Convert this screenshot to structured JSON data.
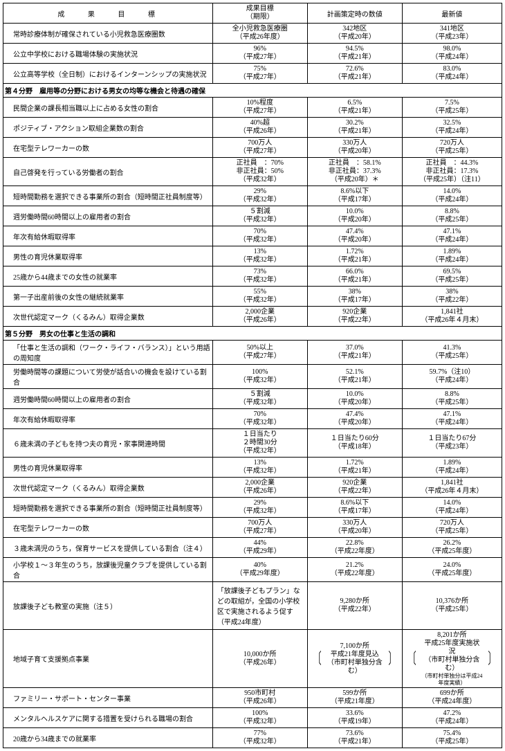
{
  "header": {
    "col1": "成　　果　　目　　標",
    "col2a": "成果目標",
    "col2b": "（期限）",
    "col3": "計画策定時の数値",
    "col4": "最新値"
  },
  "rows": [
    {
      "type": "row",
      "label": "常時診療体制が確保されている小児救急医療圏数",
      "targetA": "全小児救急医療圏",
      "targetB": "（平成26年度）",
      "planA": "342地区",
      "planB": "（平成20年）",
      "latestA": "341地区",
      "latestB": "（平成23年）"
    },
    {
      "type": "row",
      "label": "公立中学校における職場体験の実施状況",
      "targetA": "96%",
      "targetB": "（平成27年）",
      "planA": "94.5%",
      "planB": "（平成21年）",
      "latestA": "98.0%",
      "latestB": "（平成24年）"
    },
    {
      "type": "row",
      "label": "公立高等学校（全日制）におけるインターンシップの実施状況",
      "targetA": "75%",
      "targetB": "（平成27年）",
      "planA": "72.6%",
      "planB": "（平成21年）",
      "latestA": "83.0%",
      "latestB": "（平成24年）"
    },
    {
      "type": "section",
      "label": "第４分野　雇用等の分野における男女の均等な機会と待遇の確保"
    },
    {
      "type": "row",
      "label": "民間企業の課長相当職以上に占める女性の割合",
      "targetA": "10%程度",
      "targetB": "（平成27年）",
      "planA": "6.5%",
      "planB": "（平成21年）",
      "latestA": "7.5%",
      "latestB": "（平成25年）"
    },
    {
      "type": "row",
      "label": "ポジティブ・アクション取組企業数の割合",
      "targetA": "40%超",
      "targetB": "（平成26年）",
      "planA": "30.2%",
      "planB": "（平成21年）",
      "latestA": "32.5%",
      "latestB": "（平成24年）"
    },
    {
      "type": "row",
      "label": "在宅型テレワーカーの数",
      "targetA": "700万人",
      "targetB": "（平成27年）",
      "planA": "330万人",
      "planB": "（平成20年）",
      "latestA": "720万人",
      "latestB": "（平成25年）"
    },
    {
      "type": "row3",
      "label": "自己啓発を行っている労働者の割合",
      "targetA": "正社員　：70%",
      "targetB": "非正社員：50%",
      "targetC": "（平成32年）",
      "planA": "正社員　：58.1%",
      "planB": "非正社員：37.3%",
      "planC": "（平成20年）＊",
      "latestA": "正社員　：44.3%",
      "latestB": "非正社員：17.3%",
      "latestC": "（平成25年）（注11）"
    },
    {
      "type": "row",
      "label": "短時間勤務を選択できる事業所の割合（短時間正社員制度等）",
      "targetA": "29%",
      "targetB": "（平成32年）",
      "planA": "8.6%以下",
      "planB": "（平成17年）",
      "latestA": "14.0%",
      "latestB": "（平成24年）"
    },
    {
      "type": "row",
      "label": "週労働時間60時間以上の雇用者の割合",
      "targetA": "５割減",
      "targetB": "（平成32年）",
      "planA": "10.0%",
      "planB": "（平成20年）",
      "latestA": "8.8%",
      "latestB": "（平成25年）"
    },
    {
      "type": "row",
      "label": "年次有給休暇取得率",
      "targetA": "70%",
      "targetB": "（平成32年）",
      "planA": "47.4%",
      "planB": "（平成20年）",
      "latestA": "47.1%",
      "latestB": "（平成24年）"
    },
    {
      "type": "row",
      "label": "男性の育児休業取得率",
      "targetA": "13%",
      "targetB": "（平成32年）",
      "planA": "1.72%",
      "planB": "（平成21年）",
      "latestA": "1.89%",
      "latestB": "（平成24年）"
    },
    {
      "type": "row",
      "label": "25歳から44歳までの女性の就業率",
      "targetA": "73%",
      "targetB": "（平成32年）",
      "planA": "66.0%",
      "planB": "（平成21年）",
      "latestA": "69.5%",
      "latestB": "（平成25年）"
    },
    {
      "type": "row",
      "label": "第一子出産前後の女性の継続就業率",
      "targetA": "55%",
      "targetB": "（平成32年）",
      "planA": "38%",
      "planB": "（平成17年）",
      "latestA": "38%",
      "latestB": "（平成22年）"
    },
    {
      "type": "row",
      "label": "次世代認定マーク（くるみん）取得企業数",
      "targetA": "2,000企業",
      "targetB": "（平成26年）",
      "planA": "920企業",
      "planB": "（平成22年）",
      "latestA": "1,841社",
      "latestB": "（平成26年４月末）"
    },
    {
      "type": "section",
      "label": "第５分野　男女の仕事と生活の調和"
    },
    {
      "type": "row",
      "label": "「仕事と生活の調和（ワーク・ライフ・バランス）」という用語の周知度",
      "targetA": "50%以上",
      "targetB": "（平成27年）",
      "planA": "37.0%",
      "planB": "（平成21年）",
      "latestA": "41.3%",
      "latestB": "（平成25年）"
    },
    {
      "type": "row",
      "label": "労働時間等の課題について労使が話合いの機会を設けている割合",
      "targetA": "100%",
      "targetB": "（平成32年）",
      "planA": "52.1%",
      "planB": "（平成21年）",
      "latestA": "59.7%（注10）",
      "latestB": "（平成24年）"
    },
    {
      "type": "row",
      "label": "週労働時間60時間以上の雇用者の割合",
      "targetA": "５割減",
      "targetB": "（平成32年）",
      "planA": "10.0%",
      "planB": "（平成20年）",
      "latestA": "8.8%",
      "latestB": "（平成25年）"
    },
    {
      "type": "row",
      "label": "年次有給休暇取得率",
      "targetA": "70%",
      "targetB": "（平成32年）",
      "planA": "47.4%",
      "planB": "（平成20年）",
      "latestA": "47.1%",
      "latestB": "（平成24年）"
    },
    {
      "type": "row3",
      "label": "６歳未満の子どもを持つ夫の育児・家事関連時間",
      "targetA": "１日当たり",
      "targetB": "２時間30分",
      "targetC": "（平成32年）",
      "planA": "１日当たり60分",
      "planB": "（平成18年）",
      "planC": "",
      "latestA": "１日当たり67分",
      "latestB": "（平成23年）",
      "latestC": ""
    },
    {
      "type": "row",
      "label": "男性の育児休業取得率",
      "targetA": "13%",
      "targetB": "（平成32年）",
      "planA": "1.72%",
      "planB": "（平成21年）",
      "latestA": "1.89%",
      "latestB": "（平成24年）"
    },
    {
      "type": "row",
      "label": "次世代認定マーク（くるみん）取得企業数",
      "targetA": "2,000企業",
      "targetB": "（平成26年）",
      "planA": "920企業",
      "planB": "（平成22年）",
      "latestA": "1,841社",
      "latestB": "（平成26年４月末）"
    },
    {
      "type": "row",
      "label": "短時間勤務を選択できる事業所の割合（短時間正社員制度等）",
      "targetA": "29%",
      "targetB": "（平成32年）",
      "planA": "8.6%以下",
      "planB": "（平成17年）",
      "latestA": "14.0%",
      "latestB": "（平成24年）"
    },
    {
      "type": "row",
      "label": "在宅型テレワーカーの数",
      "targetA": "700万人",
      "targetB": "（平成27年）",
      "planA": "330万人",
      "planB": "（平成20年）",
      "latestA": "720万人",
      "latestB": "（平成25年）"
    },
    {
      "type": "row",
      "label": "３歳未満児のうち，保育サービスを提供している割合（注４）",
      "targetA": "44%",
      "targetB": "（平成29年）",
      "planA": "22.8%",
      "planB": "（平成22年度）",
      "latestA": "26.2%",
      "latestB": "（平成25年度）"
    },
    {
      "type": "row",
      "label": "小学校１～３年生のうち，放課後児童クラブを提供している割合",
      "targetA": "40%",
      "targetB": "（平成29年度）",
      "planA": "21.2%",
      "planB": "（平成22年度）",
      "latestA": "24.0%",
      "latestB": "（平成25年度）"
    },
    {
      "type": "row4",
      "label": "放課後子ども教室の実施（注５）",
      "targetA": "「放課後子どもプラン」などの取組が，全国の小学校区で実施されるよう促す（平成24年度）",
      "planA": "9,280か所",
      "planB": "（平成22年）",
      "latestA": "10,376か所",
      "latestB": "（平成25年）"
    },
    {
      "type": "bracket",
      "label": "地域子育て支援拠点事業",
      "targetA": "10,000か所",
      "targetB": "（平成26年）",
      "planA": "7,100か所",
      "planB": "平成21年度見込",
      "planC": "（市町村単独分含む）",
      "latestA": "8,201か所",
      "latestB": "平成25年度実施状況",
      "latestC": "（市町村単独分含む）",
      "latestD": "（市町村単独分は平成24年度実績）"
    },
    {
      "type": "row",
      "label": "ファミリー・サポート・センター事業",
      "targetA": "950市町村",
      "targetB": "（平成26年）",
      "planA": "599か所",
      "planB": "（平成21年度）",
      "latestA": "699か所",
      "latestB": "（平成24年度）"
    },
    {
      "type": "row",
      "label": "メンタルヘルスケアに関する措置を受けられる職場の割合",
      "targetA": "100%",
      "targetB": "（平成32年）",
      "planA": "33.6%",
      "planB": "（平成19年）",
      "latestA": "47.2%",
      "latestB": "（平成24年）"
    },
    {
      "type": "row",
      "label": "20歳から34歳までの就業率",
      "targetA": "77%",
      "targetB": "（平成32年）",
      "planA": "73.6%",
      "planB": "（平成21年）",
      "latestA": "75.4%",
      "latestB": "（平成25年）"
    }
  ]
}
